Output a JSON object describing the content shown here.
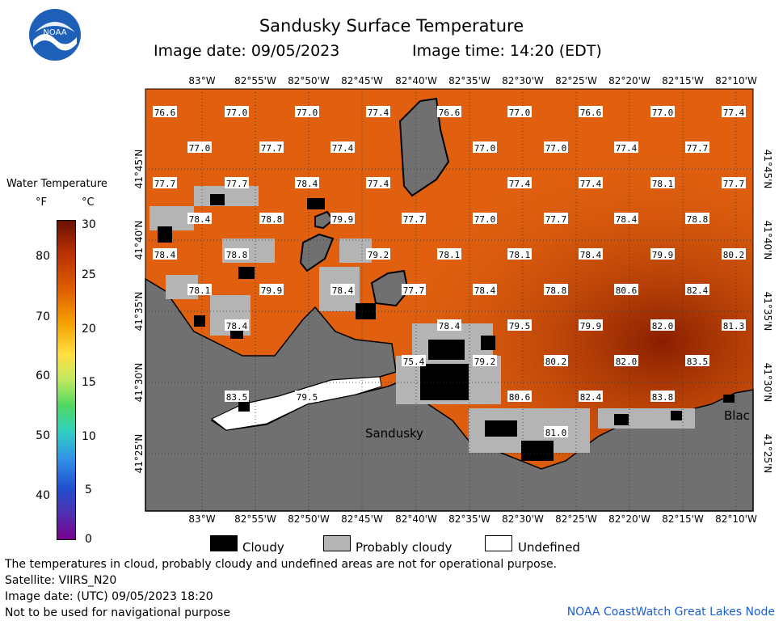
{
  "header": {
    "title": "Sandusky Surface Temperature",
    "image_date": "Image date: 09/05/2023",
    "image_time": "Image time: 14:20 (EDT)",
    "logo_text": "NOAA"
  },
  "legend": {
    "title": "Water Temperature",
    "f_unit": "°F",
    "c_unit": "°C",
    "f_ticks": [
      "80",
      "70",
      "60",
      "50",
      "40"
    ],
    "c_ticks": [
      "30",
      "25",
      "20",
      "15",
      "10",
      "5",
      "0"
    ],
    "colors": {
      "hot": "#6a1000",
      "warm": "#e06000",
      "yellow": "#ffe040",
      "green": "#50d860",
      "blue": "#2050d0",
      "cold": "#7a0090"
    }
  },
  "map": {
    "lon_labels": [
      "83°W",
      "82°55'W",
      "82°50'W",
      "82°45'W",
      "82°40'W",
      "82°35'W",
      "82°30'W",
      "82°25'W",
      "82°20'W",
      "82°15'W",
      "82°10'W"
    ],
    "lat_labels": [
      "41°45'N",
      "41°40'N",
      "41°35'N",
      "41°30'N",
      "41°25'N"
    ],
    "place_labels": [
      "Sandusky",
      "Blac"
    ],
    "colors": {
      "water": "#e06010",
      "land": "#707070",
      "cloudy": "#000000",
      "probably_cloudy": "#b4b4b4",
      "undefined": "#ffffff"
    },
    "temps_row1": [
      "76.6",
      "77.0",
      "77.0",
      "77.4",
      "76.6",
      "77.0",
      "76.6",
      "77.0",
      "77.4"
    ],
    "temps_row2": [
      "77.0",
      "77.7",
      "77.4",
      "77.0",
      "77.0",
      "77.4",
      "77.7"
    ],
    "temps_row3": [
      "77.7",
      "77.7",
      "78.4",
      "77.4",
      "77.4",
      "77.4",
      "78.1",
      "77.7"
    ],
    "temps_row4": [
      "78.4",
      "78.8",
      "79.9",
      "77.7",
      "77.0",
      "77.7",
      "78.4",
      "78.8"
    ],
    "temps_row5": [
      "78.4",
      "78.8",
      "79.2",
      "78.1",
      "78.1",
      "78.4",
      "79.9",
      "80.2"
    ],
    "temps_row6": [
      "78.1",
      "79.9",
      "78.4",
      "77.7",
      "78.4",
      "78.8",
      "80.6",
      "82.4"
    ],
    "temps_row7": [
      "78.4",
      "78.4",
      "79.5",
      "79.9",
      "82.0",
      "81.3"
    ],
    "temps_row8": [
      "75.4",
      "79.2",
      "80.2",
      "82.0",
      "83.5"
    ],
    "temps_row9": [
      "83.5",
      "79.5",
      "80.6",
      "82.4",
      "83.8"
    ],
    "temps_row10": [
      "81.0"
    ]
  },
  "key": {
    "cloudy": "Cloudy",
    "probably_cloudy": "Probably cloudy",
    "undefined": "Undefined"
  },
  "footer": {
    "disclaimer": "The temperatures in cloud, probably cloudy and undefined areas are not for operational purpose.",
    "satellite": "Satellite: VIIRS_N20",
    "utc_date": "Image date: (UTC) 09/05/2023  18:20",
    "nav_warning": "Not to be used for navigational purpose",
    "credit": "NOAA CoastWatch Great Lakes Node"
  }
}
